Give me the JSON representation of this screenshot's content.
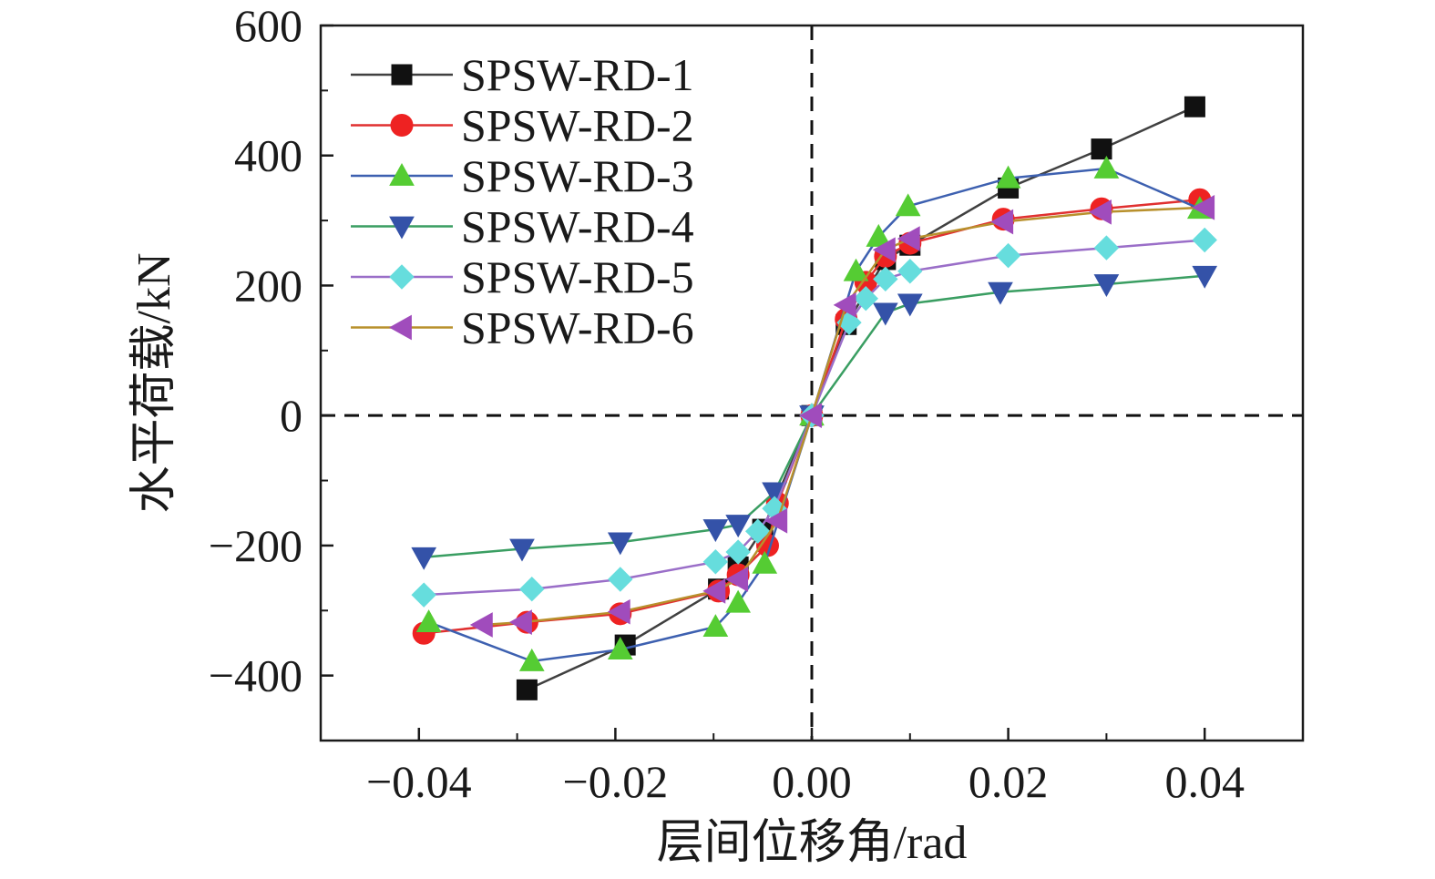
{
  "chart_data": {
    "type": "line",
    "title": "",
    "xlabel": "层间位移角/rad",
    "ylabel": "水平荷载/kN",
    "xlim": [
      -0.05,
      0.05
    ],
    "ylim": [
      -500,
      600
    ],
    "xticks": [
      -0.04,
      -0.02,
      0.0,
      0.02,
      0.04
    ],
    "xtick_labels": [
      "−0.04",
      "−0.02",
      "0.00",
      "0.02",
      "0.04"
    ],
    "yticks": [
      -400,
      -200,
      0,
      200,
      400,
      600
    ],
    "ytick_labels": [
      "−400",
      "−200",
      "0",
      "200",
      "400",
      "600"
    ],
    "grid": false,
    "reference_lines": "dashed lines at x = 0 and y = 0",
    "legend_position": "top-left",
    "series": [
      {
        "name": "SPSW-RD-1",
        "color": "#404040",
        "marker_color": "#111111",
        "marker": "square",
        "points": [
          [
            -0.029,
            -422
          ],
          [
            -0.019,
            -353
          ],
          [
            -0.0095,
            -267
          ],
          [
            -0.0075,
            -233
          ],
          [
            -0.005,
            -175
          ],
          [
            0.0,
            0
          ],
          [
            0.0035,
            140
          ],
          [
            0.0075,
            240
          ],
          [
            0.01,
            262
          ],
          [
            0.02,
            350
          ],
          [
            0.0295,
            410
          ],
          [
            0.039,
            475
          ]
        ]
      },
      {
        "name": "SPSW-RD-2",
        "color": "#e03030",
        "marker_color": "#ee2222",
        "marker": "circle",
        "points": [
          [
            -0.0395,
            -335
          ],
          [
            -0.029,
            -318
          ],
          [
            -0.0195,
            -305
          ],
          [
            -0.0095,
            -270
          ],
          [
            -0.0075,
            -245
          ],
          [
            -0.0045,
            -200
          ],
          [
            -0.0035,
            -135
          ],
          [
            0.0,
            0
          ],
          [
            0.0035,
            148
          ],
          [
            0.0055,
            205
          ],
          [
            0.0075,
            245
          ],
          [
            0.01,
            265
          ],
          [
            0.0195,
            302
          ],
          [
            0.0295,
            318
          ],
          [
            0.0395,
            332
          ]
        ]
      },
      {
        "name": "SPSW-RD-3",
        "color": "#3d60b0",
        "marker_color": "#55cc33",
        "marker": "triangle-up",
        "points": [
          [
            -0.039,
            -318
          ],
          [
            -0.0285,
            -378
          ],
          [
            -0.0195,
            -360
          ],
          [
            -0.0098,
            -325
          ],
          [
            -0.0075,
            -288
          ],
          [
            -0.0048,
            -228
          ],
          [
            0.0,
            0
          ],
          [
            0.0045,
            222
          ],
          [
            0.0068,
            275
          ],
          [
            0.0098,
            322
          ],
          [
            0.02,
            365
          ],
          [
            0.03,
            380
          ],
          [
            0.0395,
            318
          ]
        ]
      },
      {
        "name": "SPSW-RD-4",
        "color": "#3a9e62",
        "marker_color": "#3452a8",
        "marker": "triangle-down",
        "points": [
          [
            -0.0395,
            -218
          ],
          [
            -0.0295,
            -205
          ],
          [
            -0.0195,
            -195
          ],
          [
            -0.0098,
            -175
          ],
          [
            -0.0075,
            -168
          ],
          [
            -0.0038,
            -118
          ],
          [
            0.0,
            0
          ],
          [
            0.0075,
            158
          ],
          [
            0.01,
            172
          ],
          [
            0.0192,
            190
          ],
          [
            0.03,
            202
          ],
          [
            0.04,
            215
          ]
        ]
      },
      {
        "name": "SPSW-RD-5",
        "color": "#9a6ec8",
        "marker_color": "#66dddd",
        "marker": "diamond",
        "points": [
          [
            -0.0395,
            -276
          ],
          [
            -0.0285,
            -267
          ],
          [
            -0.0195,
            -252
          ],
          [
            -0.0098,
            -225
          ],
          [
            -0.0075,
            -210
          ],
          [
            -0.0055,
            -178
          ],
          [
            -0.0038,
            -143
          ],
          [
            0.0,
            0
          ],
          [
            0.0038,
            143
          ],
          [
            0.0055,
            180
          ],
          [
            0.0075,
            210
          ],
          [
            0.01,
            222
          ],
          [
            0.02,
            246
          ],
          [
            0.03,
            258
          ],
          [
            0.04,
            270
          ]
        ]
      },
      {
        "name": "SPSW-RD-6",
        "color": "#b8902c",
        "marker_color": "#a04cbc",
        "marker": "triangle-left",
        "points": [
          [
            -0.0335,
            -322
          ],
          [
            -0.0295,
            -318
          ],
          [
            -0.0195,
            -302
          ],
          [
            -0.0098,
            -270
          ],
          [
            -0.0075,
            -252
          ],
          [
            -0.0035,
            -162
          ],
          [
            0.0,
            0
          ],
          [
            0.0035,
            170
          ],
          [
            0.0075,
            255
          ],
          [
            0.01,
            272
          ],
          [
            0.0195,
            298
          ],
          [
            0.0295,
            313
          ],
          [
            0.04,
            320
          ]
        ]
      }
    ]
  }
}
